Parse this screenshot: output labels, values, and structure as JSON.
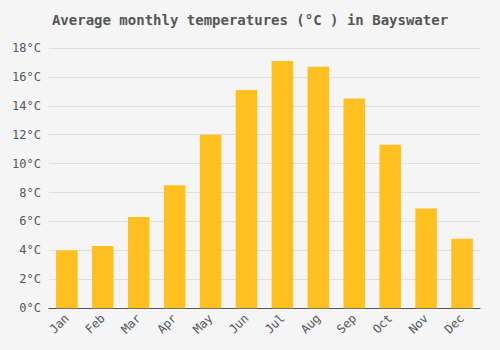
{
  "chart_data": {
    "type": "bar",
    "title": "Average monthly temperatures (°C ) in Bayswater",
    "categories": [
      "Jan",
      "Feb",
      "Mar",
      "Apr",
      "May",
      "Jun",
      "Jul",
      "Aug",
      "Sep",
      "Oct",
      "Nov",
      "Dec"
    ],
    "values": [
      4.0,
      4.3,
      6.3,
      8.5,
      12.0,
      15.1,
      17.1,
      16.7,
      14.5,
      11.3,
      6.9,
      4.8
    ],
    "color": "#FFC020",
    "ylim": [
      0,
      18
    ],
    "yticks": [
      {
        "value": 0,
        "label": "0°C"
      },
      {
        "value": 2,
        "label": "2°C"
      },
      {
        "value": 4,
        "label": "4°C"
      },
      {
        "value": 6,
        "label": "6°C"
      },
      {
        "value": 8,
        "label": "8°C"
      },
      {
        "value": 10,
        "label": "10°C"
      },
      {
        "value": 12,
        "label": "12°C"
      },
      {
        "value": 14,
        "label": "14°C"
      },
      {
        "value": 16,
        "label": "16°C"
      },
      {
        "value": 18,
        "label": "18°C"
      }
    ],
    "grid": true
  }
}
